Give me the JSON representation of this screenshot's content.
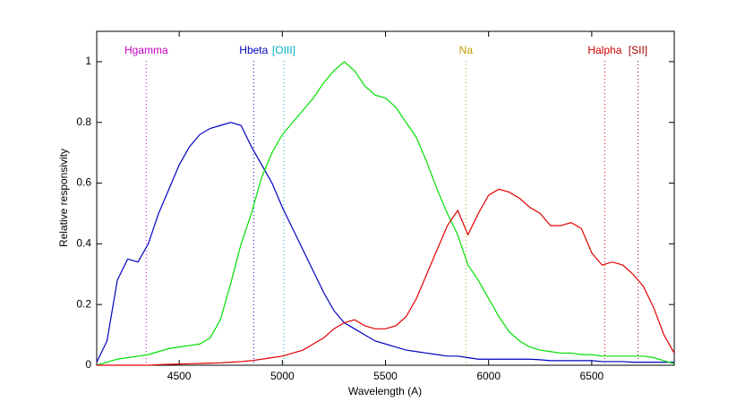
{
  "chart_data": {
    "type": "line",
    "x_label": "Wavelength (A)",
    "y_label": "Relative responsivity",
    "xlim": [
      4100,
      6900
    ],
    "ylim": [
      0,
      1.1
    ],
    "xticks": [
      4500,
      5000,
      5500,
      6000,
      6500
    ],
    "yticks": [
      0,
      0.2,
      0.4,
      0.6,
      0.8,
      1
    ],
    "grid": false,
    "x": [
      4100,
      4150,
      4200,
      4250,
      4300,
      4350,
      4400,
      4450,
      4500,
      4550,
      4600,
      4650,
      4700,
      4750,
      4800,
      4850,
      4900,
      4950,
      5000,
      5050,
      5100,
      5150,
      5200,
      5250,
      5300,
      5350,
      5400,
      5450,
      5500,
      5550,
      5600,
      5650,
      5700,
      5750,
      5800,
      5850,
      5900,
      5950,
      6000,
      6050,
      6100,
      6150,
      6200,
      6250,
      6300,
      6350,
      6400,
      6450,
      6500,
      6550,
      6600,
      6650,
      6700,
      6750,
      6800,
      6850,
      6900
    ],
    "series": [
      {
        "name": "Blue",
        "color": "#0000c0",
        "values": [
          0.01,
          0.08,
          0.28,
          0.35,
          0.34,
          0.4,
          0.5,
          0.58,
          0.66,
          0.72,
          0.76,
          0.78,
          0.79,
          0.8,
          0.79,
          0.72,
          0.66,
          0.6,
          0.52,
          0.45,
          0.38,
          0.31,
          0.24,
          0.18,
          0.14,
          0.12,
          0.1,
          0.08,
          0.07,
          0.06,
          0.05,
          0.045,
          0.04,
          0.035,
          0.03,
          0.03,
          0.025,
          0.02,
          0.02,
          0.02,
          0.02,
          0.02,
          0.02,
          0.018,
          0.015,
          0.015,
          0.015,
          0.015,
          0.015,
          0.012,
          0.012,
          0.012,
          0.01,
          0.01,
          0.01,
          0.01,
          0.01
        ]
      },
      {
        "name": "Green",
        "color": "#00e000",
        "values": [
          0,
          0.01,
          0.02,
          0.025,
          0.03,
          0.035,
          0.045,
          0.055,
          0.06,
          0.065,
          0.07,
          0.09,
          0.15,
          0.27,
          0.4,
          0.5,
          0.62,
          0.7,
          0.76,
          0.8,
          0.84,
          0.88,
          0.93,
          0.97,
          1,
          0.97,
          0.92,
          0.89,
          0.88,
          0.85,
          0.8,
          0.75,
          0.67,
          0.58,
          0.5,
          0.43,
          0.33,
          0.28,
          0.22,
          0.16,
          0.11,
          0.08,
          0.06,
          0.05,
          0.045,
          0.04,
          0.04,
          0.035,
          0.035,
          0.03,
          0.03,
          0.03,
          0.03,
          0.03,
          0.025,
          0.015,
          0.005
        ]
      },
      {
        "name": "Red",
        "color": "#e00000",
        "values": [
          0,
          0,
          0,
          0,
          0,
          0,
          0.002,
          0.003,
          0.004,
          0.005,
          0.006,
          0.007,
          0.008,
          0.01,
          0.012,
          0.015,
          0.02,
          0.025,
          0.03,
          0.04,
          0.05,
          0.07,
          0.09,
          0.12,
          0.14,
          0.15,
          0.13,
          0.12,
          0.12,
          0.13,
          0.16,
          0.22,
          0.3,
          0.38,
          0.46,
          0.51,
          0.43,
          0.5,
          0.56,
          0.58,
          0.57,
          0.55,
          0.52,
          0.5,
          0.46,
          0.46,
          0.47,
          0.45,
          0.37,
          0.33,
          0.34,
          0.33,
          0.3,
          0.26,
          0.19,
          0.1,
          0.04
        ]
      }
    ],
    "vlines": [
      {
        "label": "Hgamma",
        "x": 4340,
        "color": "#c000c0"
      },
      {
        "label": "Hbeta",
        "x": 4861,
        "color": "#0000c0"
      },
      {
        "label": "[OIII]",
        "x": 5007,
        "color": "#00b0c0"
      },
      {
        "label": "Na",
        "x": 5890,
        "color": "#c0a000"
      },
      {
        "label": "Halpha",
        "x": 6563,
        "color": "#d00000"
      },
      {
        "label": "[SII]",
        "x": 6724,
        "color": "#a00000"
      }
    ]
  }
}
